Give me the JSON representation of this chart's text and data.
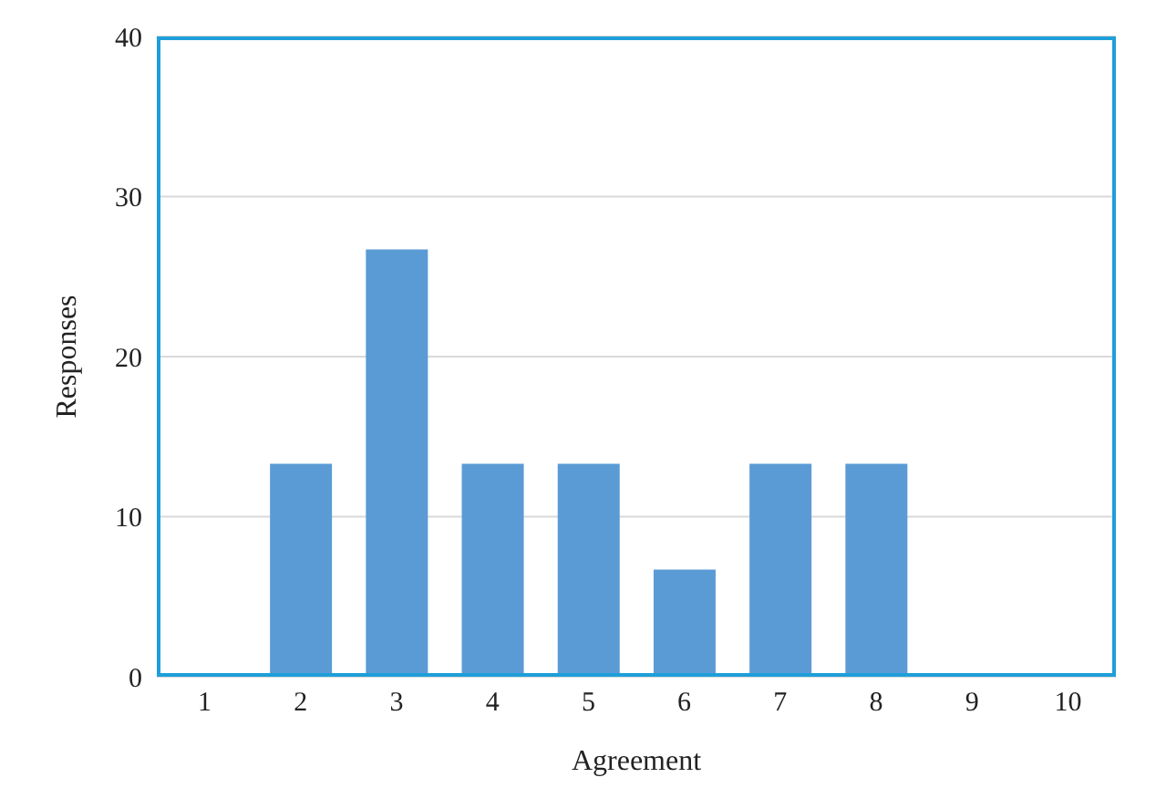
{
  "chart_data": {
    "type": "bar",
    "xlabel": "Agreement",
    "ylabel": "Responses",
    "categories": [
      "1",
      "2",
      "3",
      "4",
      "5",
      "6",
      "7",
      "8",
      "9",
      "10"
    ],
    "values": [
      0,
      13.3,
      26.7,
      13.3,
      13.3,
      6.7,
      13.3,
      13.3,
      0,
      0
    ],
    "color": "#5b9bd5",
    "ylim": [
      0,
      40
    ],
    "yticks": [
      0,
      10,
      20,
      30,
      40
    ],
    "grid": "y"
  }
}
